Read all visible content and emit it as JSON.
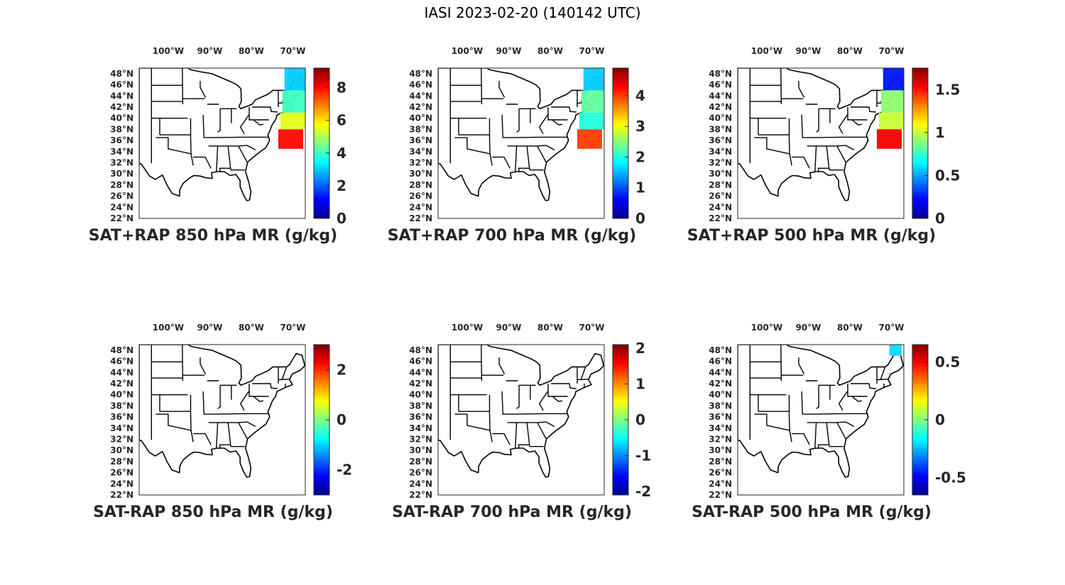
{
  "figure_title": "IASI 2023-02-20 (140142 UTC)",
  "colormap": [
    "#00008f",
    "#0000ff",
    "#0080ff",
    "#00ffff",
    "#80ff80",
    "#ffff00",
    "#ff8000",
    "#ff0000",
    "#800000"
  ],
  "lon_ticks": [
    {
      "value": -100,
      "label": "100°W"
    },
    {
      "value": -90,
      "label": "90°W"
    },
    {
      "value": -80,
      "label": "80°W"
    },
    {
      "value": -70,
      "label": "70°W"
    }
  ],
  "lat_ticks": [
    {
      "value": 48,
      "label": "48°N"
    },
    {
      "value": 46,
      "label": "46°N"
    },
    {
      "value": 44,
      "label": "44°N"
    },
    {
      "value": 42,
      "label": "42°N"
    },
    {
      "value": 40,
      "label": "40°N"
    },
    {
      "value": 38,
      "label": "38°N"
    },
    {
      "value": 36,
      "label": "36°N"
    },
    {
      "value": 34,
      "label": "34°N"
    },
    {
      "value": 32,
      "label": "32°N"
    },
    {
      "value": 30,
      "label": "30°N"
    },
    {
      "value": 28,
      "label": "28°N"
    },
    {
      "value": 26,
      "label": "26°N"
    },
    {
      "value": 24,
      "label": "24°N"
    },
    {
      "value": 22,
      "label": "22°N"
    }
  ],
  "chart_data": [
    {
      "type": "heatmap",
      "id": "p1",
      "title": "SAT+RAP 850 hPa MR (g/kg)",
      "projection": "map of eastern United States",
      "lon_range": [
        -107,
        -67
      ],
      "lat_range": [
        22,
        49
      ],
      "colorbar": {
        "range": [
          0,
          9.2
        ],
        "ticks": [
          0,
          2,
          4,
          6,
          8
        ],
        "tick_labels": [
          "0",
          "2",
          "4",
          "6",
          "8"
        ]
      },
      "swath": [
        {
          "lat_range": [
            45,
            49
          ],
          "lon_range": [
            -72,
            -67
          ],
          "value": 3.0
        },
        {
          "lat_range": [
            41,
            45
          ],
          "lon_range": [
            -72.5,
            -67
          ],
          "value": 4.0
        },
        {
          "lat_range": [
            38,
            41
          ],
          "lon_range": [
            -73,
            -67
          ],
          "value": 5.5
        },
        {
          "lat_range": [
            34.5,
            38
          ],
          "lon_range": [
            -73.5,
            -67.5
          ],
          "value": 8.0
        }
      ]
    },
    {
      "type": "heatmap",
      "id": "p2",
      "title": "SAT+RAP 700 hPa MR (g/kg)",
      "projection": "map of eastern United States",
      "lon_range": [
        -107,
        -67
      ],
      "lat_range": [
        22,
        49
      ],
      "colorbar": {
        "range": [
          0,
          4.9
        ],
        "ticks": [
          0,
          1,
          2,
          3,
          4
        ],
        "tick_labels": [
          "0",
          "1",
          "2",
          "3",
          "4"
        ]
      },
      "swath": [
        {
          "lat_range": [
            45,
            49
          ],
          "lon_range": [
            -72,
            -67
          ],
          "value": 1.6
        },
        {
          "lat_range": [
            41,
            45
          ],
          "lon_range": [
            -72.5,
            -67
          ],
          "value": 2.3
        },
        {
          "lat_range": [
            38,
            41
          ],
          "lon_range": [
            -73,
            -67
          ],
          "value": 2.0
        },
        {
          "lat_range": [
            34.5,
            38
          ],
          "lon_range": [
            -73.5,
            -67.5
          ],
          "value": 4.0
        }
      ]
    },
    {
      "type": "heatmap",
      "id": "p3",
      "title": "SAT+RAP 500 hPa MR (g/kg)",
      "projection": "map of eastern United States",
      "lon_range": [
        -107,
        -67
      ],
      "lat_range": [
        22,
        49
      ],
      "colorbar": {
        "range": [
          0,
          1.75
        ],
        "ticks": [
          0,
          0.5,
          1,
          1.5
        ],
        "tick_labels": [
          "0",
          "0.5",
          "1",
          "1.5"
        ]
      },
      "swath": [
        {
          "lat_range": [
            45,
            49
          ],
          "lon_range": [
            -72,
            -67
          ],
          "value": 0.25
        },
        {
          "lat_range": [
            41,
            45
          ],
          "lon_range": [
            -72.5,
            -67
          ],
          "value": 0.9
        },
        {
          "lat_range": [
            38,
            41
          ],
          "lon_range": [
            -73,
            -67
          ],
          "value": 1.0
        },
        {
          "lat_range": [
            34.5,
            38
          ],
          "lon_range": [
            -73.5,
            -67.5
          ],
          "value": 1.55
        }
      ]
    },
    {
      "type": "heatmap",
      "id": "p4",
      "title": "SAT-RAP 850 hPa MR (g/kg)",
      "projection": "map of eastern United States",
      "lon_range": [
        -107,
        -67
      ],
      "lat_range": [
        22,
        49
      ],
      "colorbar": {
        "range": [
          -3,
          3
        ],
        "ticks": [
          -2,
          0,
          2
        ],
        "tick_labels": [
          "-2",
          "0",
          "2"
        ]
      },
      "swath": []
    },
    {
      "type": "heatmap",
      "id": "p5",
      "title": "SAT-RAP 700 hPa MR (g/kg)",
      "projection": "map of eastern United States",
      "lon_range": [
        -107,
        -67
      ],
      "lat_range": [
        22,
        49
      ],
      "colorbar": {
        "range": [
          -2.1,
          2.1
        ],
        "ticks": [
          -2,
          -1,
          0,
          1,
          2
        ],
        "tick_labels": [
          "-2",
          "-1",
          "0",
          "1",
          "2"
        ]
      },
      "swath": []
    },
    {
      "type": "heatmap",
      "id": "p6",
      "title": "SAT-RAP 500 hPa MR (g/kg)",
      "projection": "map of eastern United States",
      "lon_range": [
        -107,
        -67
      ],
      "lat_range": [
        22,
        49
      ],
      "colorbar": {
        "range": [
          -0.65,
          0.65
        ],
        "ticks": [
          -0.5,
          0,
          0.5
        ],
        "tick_labels": [
          "-0.5",
          "0",
          "0.5"
        ]
      },
      "swath": [
        {
          "lat_range": [
            47,
            49
          ],
          "lon_range": [
            -70.5,
            -67.5
          ],
          "value": -0.2
        }
      ]
    }
  ]
}
